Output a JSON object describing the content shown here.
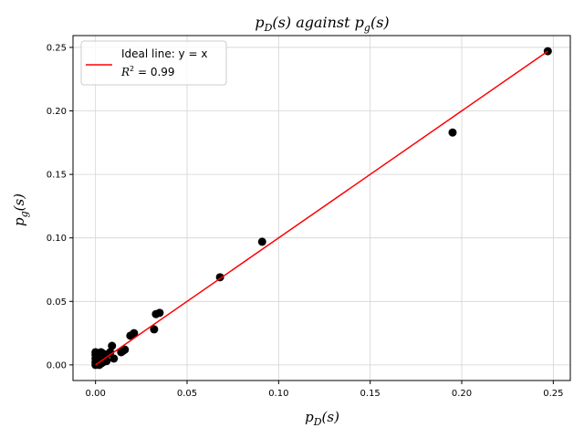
{
  "chart_data": {
    "type": "scatter",
    "title": {
      "pre": "p",
      "pre_sub": "D",
      "mid": "(s) against ",
      "post": "p",
      "post_sub": "g",
      "end": "(s)"
    },
    "xlabel": {
      "base": "p",
      "sub": "D",
      "end": "(s)"
    },
    "ylabel": {
      "base": "p",
      "sub": "g",
      "end": "(s)"
    },
    "xlim": [
      -0.0123,
      0.2593
    ],
    "ylim": [
      -0.0123,
      0.2593
    ],
    "xticks": [
      0.0,
      0.05,
      0.1,
      0.15,
      0.2,
      0.25
    ],
    "xtick_labels": [
      "0.00",
      "0.05",
      "0.10",
      "0.15",
      "0.20",
      "0.25"
    ],
    "yticks": [
      0.0,
      0.05,
      0.1,
      0.15,
      0.2,
      0.25
    ],
    "ytick_labels": [
      "0.00",
      "0.05",
      "0.10",
      "0.15",
      "0.20",
      "0.25"
    ],
    "grid": true,
    "legend_position": "top-left",
    "legend": {
      "line_label": "Ideal line: y = x",
      "r2_sym": "R",
      "r2_sup": "2",
      "r2_text": " = 0.99"
    },
    "ideal_line": {
      "x": [
        0.0,
        0.247
      ],
      "y": [
        0.0,
        0.247
      ],
      "color": "#ff0000"
    },
    "points": {
      "color": "#000000",
      "x": [
        0.247,
        0.195,
        0.091,
        0.068,
        0.035,
        0.033,
        0.032,
        0.021,
        0.019,
        0.016,
        0.015,
        0.014,
        0.01,
        0.009,
        0.008,
        0.006,
        0.005,
        0.005,
        0.004,
        0.004,
        0.003,
        0.003,
        0.003,
        0.002,
        0.002,
        0.002,
        0.002,
        0.001,
        0.001,
        0.001,
        0.001,
        0.001,
        0.0,
        0.0,
        0.0,
        0.0,
        0.0,
        0.006,
        0.004,
        0.002
      ],
      "y": [
        0.247,
        0.183,
        0.097,
        0.069,
        0.041,
        0.04,
        0.028,
        0.025,
        0.023,
        0.012,
        0.011,
        0.01,
        0.005,
        0.015,
        0.01,
        0.008,
        0.007,
        0.004,
        0.002,
        0.009,
        0.01,
        0.006,
        0.001,
        0.003,
        0.005,
        0.008,
        0.002,
        0.001,
        0.004,
        0.007,
        0.009,
        0.003,
        0.0,
        0.002,
        0.005,
        0.008,
        0.01,
        0.003,
        0.005,
        0.0
      ]
    }
  },
  "colors": {
    "line": "#ff0000",
    "points": "#000000",
    "grid": "#d3d3d3"
  }
}
